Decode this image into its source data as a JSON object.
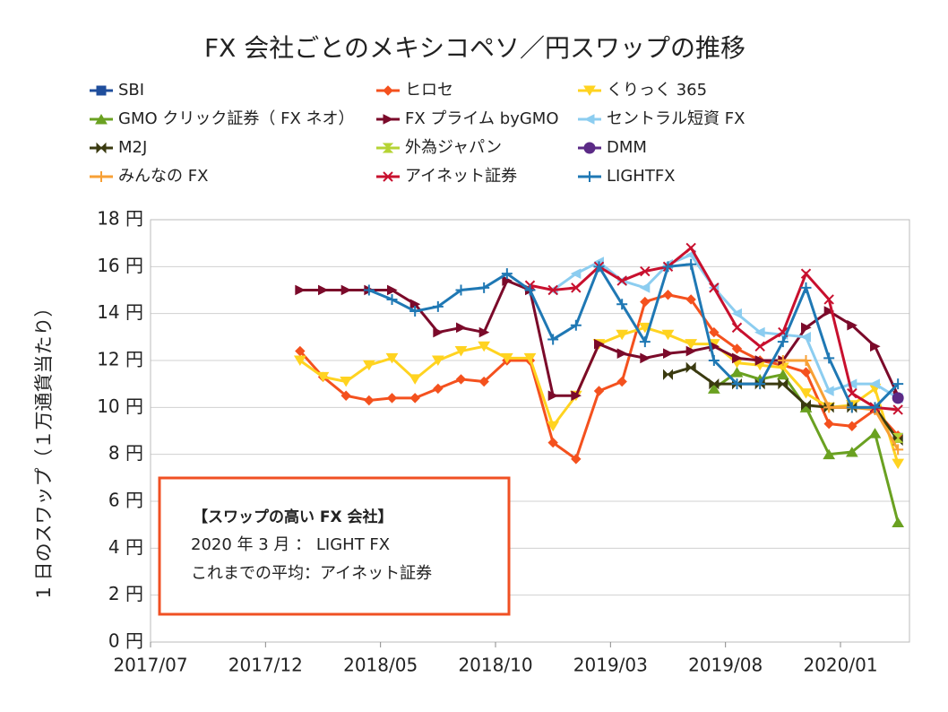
{
  "chart_data": {
    "type": "line",
    "title": "FX 会社ごとのメキシコペソ／円スワップの推移",
    "y_label": "1 日のスワップ（１万通貨当たり）",
    "x": [
      "2018/01",
      "2018/02",
      "2018/03",
      "2018/04",
      "2018/05",
      "2018/06",
      "2018/07",
      "2018/08",
      "2018/09",
      "2018/10",
      "2018/11",
      "2018/12",
      "2019/01",
      "2019/02",
      "2019/03",
      "2019/04",
      "2019/05",
      "2019/06",
      "2019/07",
      "2019/08",
      "2019/09",
      "2019/10",
      "2019/11",
      "2019/12",
      "2020/01",
      "2020/02",
      "2020/03"
    ],
    "xlim": [
      "2017/07",
      "2020/04"
    ],
    "xticks": [
      "2017/07",
      "2017/12",
      "2018/05",
      "2018/10",
      "2019/03",
      "2019/08",
      "2020/01"
    ],
    "ylim": [
      0,
      18
    ],
    "yticks": [
      {
        "value": 0,
        "label": "0 円"
      },
      {
        "value": 2,
        "label": "2 円"
      },
      {
        "value": 4,
        "label": "4 円"
      },
      {
        "value": 6,
        "label": "6 円"
      },
      {
        "value": 8,
        "label": "8 円"
      },
      {
        "value": 10,
        "label": "10 円"
      },
      {
        "value": 12,
        "label": "12 円"
      },
      {
        "value": 14,
        "label": "14 円"
      },
      {
        "value": 16,
        "label": "16 円"
      },
      {
        "value": 18,
        "label": "18 円"
      }
    ],
    "grid": true,
    "series": [
      {
        "name": "SBI",
        "color": "#1f4e9c",
        "marker": "square",
        "values": [
          null,
          null,
          null,
          null,
          null,
          null,
          null,
          null,
          null,
          null,
          null,
          null,
          null,
          null,
          null,
          null,
          null,
          null,
          null,
          null,
          null,
          null,
          null,
          null,
          null,
          null,
          8.7
        ]
      },
      {
        "name": "ヒロセ",
        "color": "#f4511e",
        "marker": "diamond",
        "values": [
          12.4,
          11.3,
          10.5,
          10.3,
          10.4,
          10.4,
          10.8,
          11.2,
          11.1,
          12.0,
          12.0,
          8.5,
          7.8,
          10.7,
          11.1,
          14.5,
          14.8,
          14.6,
          13.2,
          12.5,
          12.0,
          11.8,
          11.5,
          9.3,
          9.2,
          9.9,
          8.8
        ]
      },
      {
        "name": "くりっく 365",
        "color": "#ffd320",
        "marker": "tri-down",
        "values": [
          12.0,
          11.3,
          11.1,
          11.8,
          12.1,
          11.2,
          12.0,
          12.4,
          12.6,
          12.1,
          12.1,
          9.2,
          10.5,
          12.7,
          13.1,
          13.4,
          13.1,
          12.7,
          12.7,
          11.9,
          11.8,
          11.7,
          10.6,
          10.0,
          10.1,
          10.8,
          7.6
        ]
      },
      {
        "name": "GMO クリック証券（ FX ネオ）",
        "color": "#6aa121",
        "marker": "tri-up",
        "values": [
          null,
          null,
          null,
          null,
          null,
          null,
          null,
          null,
          null,
          null,
          null,
          null,
          null,
          null,
          null,
          null,
          null,
          null,
          10.8,
          11.5,
          11.2,
          11.4,
          10.0,
          8.0,
          8.1,
          8.9,
          5.1
        ]
      },
      {
        "name": "FX プライム byGMO",
        "color": "#7b0a2a",
        "marker": "tri-right",
        "values": [
          15.0,
          15.0,
          15.0,
          15.0,
          15.0,
          14.4,
          13.2,
          13.4,
          13.2,
          15.4,
          15.0,
          10.5,
          10.5,
          12.7,
          12.3,
          12.1,
          12.3,
          12.4,
          12.6,
          12.1,
          12.0,
          12.0,
          13.4,
          14.1,
          13.5,
          12.6,
          10.5
        ]
      },
      {
        "name": "セントラル短資 FX",
        "color": "#8ccdf0",
        "marker": "tri-left",
        "values": [
          null,
          null,
          null,
          null,
          null,
          null,
          null,
          null,
          null,
          null,
          null,
          15.0,
          15.7,
          16.2,
          15.4,
          15.1,
          16.1,
          16.5,
          15.1,
          14.0,
          13.2,
          13.1,
          13.0,
          10.7,
          11.0,
          11.0,
          10.4
        ]
      },
      {
        "name": "M2J",
        "color": "#3a3a10",
        "marker": "bowtie",
        "values": [
          null,
          null,
          null,
          null,
          null,
          null,
          null,
          null,
          null,
          null,
          null,
          null,
          null,
          null,
          null,
          null,
          11.4,
          11.7,
          11.0,
          11.0,
          11.0,
          11.0,
          10.1,
          10.0,
          10.0,
          10.0,
          8.6
        ]
      },
      {
        "name": "外為ジャパン",
        "color": "#b5d334",
        "marker": "hourglass",
        "values": [
          null,
          null,
          null,
          null,
          null,
          null,
          null,
          null,
          null,
          null,
          null,
          null,
          null,
          null,
          null,
          null,
          null,
          null,
          null,
          null,
          null,
          null,
          null,
          null,
          null,
          null,
          8.7
        ]
      },
      {
        "name": "DMM",
        "color": "#5b2a86",
        "marker": "circle",
        "values": [
          null,
          null,
          null,
          null,
          null,
          null,
          null,
          null,
          null,
          null,
          null,
          null,
          null,
          null,
          null,
          null,
          null,
          null,
          null,
          null,
          null,
          null,
          null,
          null,
          null,
          null,
          10.4
        ]
      },
      {
        "name": "みんなの FX",
        "color": "#f7a035",
        "marker": "plus",
        "values": [
          null,
          null,
          null,
          null,
          null,
          null,
          null,
          null,
          null,
          null,
          null,
          null,
          null,
          null,
          null,
          null,
          null,
          null,
          null,
          null,
          null,
          12.0,
          12.0,
          10.0,
          10.0,
          9.9,
          8.2
        ]
      },
      {
        "name": "アイネット証券",
        "color": "#c8102e",
        "marker": "x",
        "values": [
          null,
          null,
          null,
          null,
          null,
          null,
          null,
          null,
          null,
          null,
          15.2,
          15.0,
          15.1,
          16.0,
          15.4,
          15.8,
          16.0,
          16.8,
          15.1,
          13.4,
          12.6,
          13.2,
          15.7,
          14.6,
          10.6,
          10.0,
          9.9
        ]
      },
      {
        "name": "LIGHTFX",
        "color": "#1f78b4",
        "marker": "plus",
        "values": [
          null,
          null,
          null,
          15.0,
          14.6,
          14.1,
          14.3,
          15.0,
          15.1,
          15.7,
          15.0,
          12.9,
          13.5,
          16.0,
          14.4,
          12.8,
          16.0,
          16.1,
          12.0,
          11.0,
          11.0,
          12.8,
          15.1,
          12.1,
          10.0,
          10.0,
          11.0
        ]
      }
    ],
    "annotation": {
      "title": "【スワップの高い FX 会社】",
      "lines": [
        "2020 年 3 月 ： LIGHT FX",
        "これまでの平均：アイネット証券"
      ]
    }
  }
}
